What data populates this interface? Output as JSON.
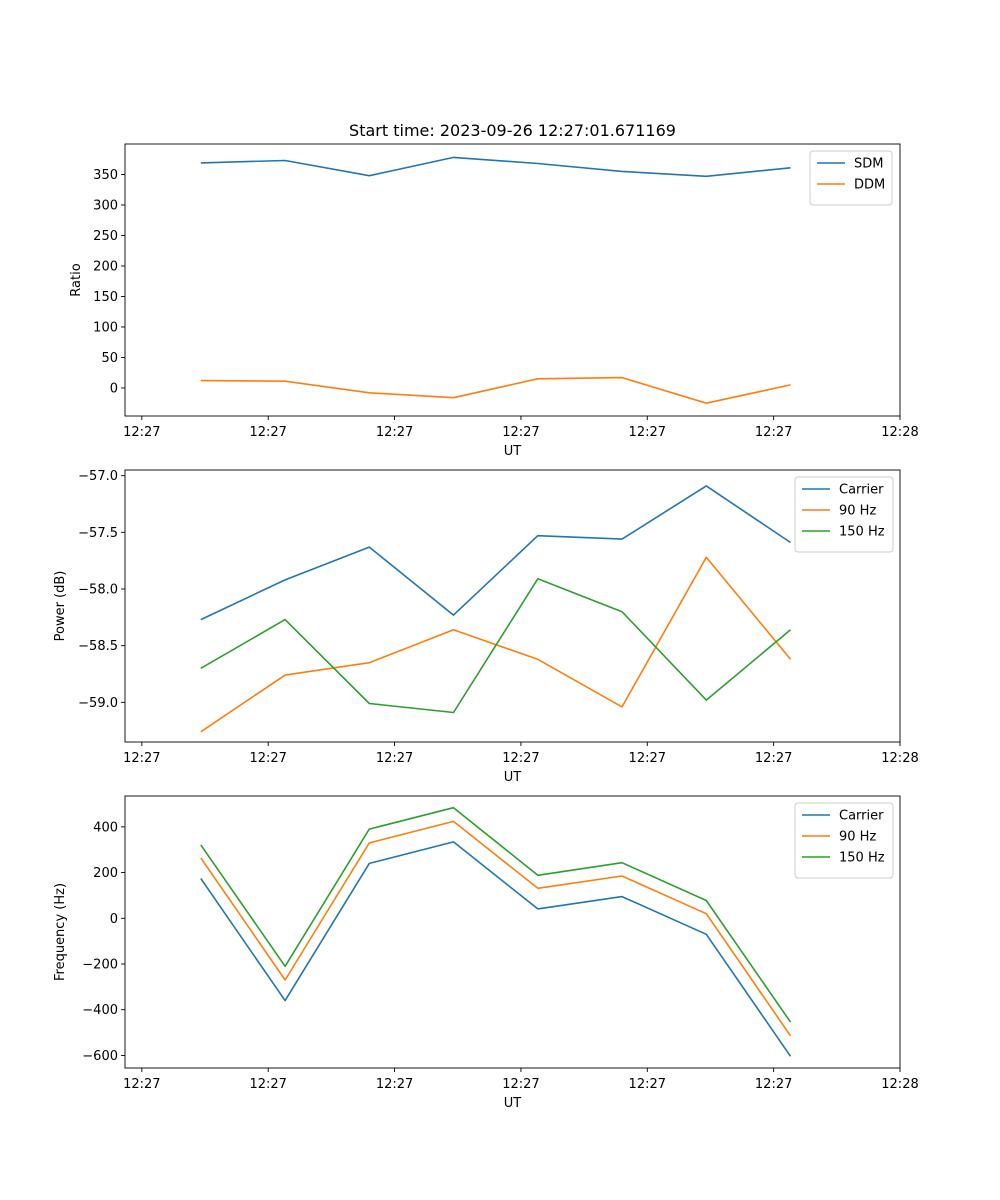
{
  "chart_data": [
    {
      "type": "line",
      "title": "Start time: 2023-09-26 12:27:01.671169",
      "xlabel": "UT",
      "ylabel": "Ratio",
      "xlim": [
        -0.9,
        8.3
      ],
      "ylim": [
        -46,
        400
      ],
      "xticks": [
        {
          "v": -0.7,
          "label": "12:27"
        },
        {
          "v": 0.8,
          "label": "12:27"
        },
        {
          "v": 2.3,
          "label": "12:27"
        },
        {
          "v": 3.8,
          "label": "12:27"
        },
        {
          "v": 5.3,
          "label": "12:27"
        },
        {
          "v": 6.8,
          "label": "12:27"
        },
        {
          "v": 8.3,
          "label": "12:28"
        }
      ],
      "yticks": [
        {
          "v": 0,
          "label": "0"
        },
        {
          "v": 50,
          "label": "50"
        },
        {
          "v": 100,
          "label": "100"
        },
        {
          "v": 150,
          "label": "150"
        },
        {
          "v": 200,
          "label": "200"
        },
        {
          "v": 250,
          "label": "250"
        },
        {
          "v": 300,
          "label": "300"
        },
        {
          "v": 350,
          "label": "350"
        }
      ],
      "legend": "top-right",
      "x": [
        0,
        1,
        2,
        3,
        4,
        5,
        6,
        7
      ],
      "series": [
        {
          "name": "SDM",
          "color": "#1f77b4",
          "values": [
            369,
            373,
            348,
            378,
            368,
            355,
            347,
            361
          ]
        },
        {
          "name": "DDM",
          "color": "#ff7f0e",
          "values": [
            12,
            11,
            -8,
            -16,
            15,
            17,
            -25,
            5
          ]
        }
      ]
    },
    {
      "type": "line",
      "title": "",
      "xlabel": "UT",
      "ylabel": "Power (dB)",
      "xlim": [
        -0.9,
        8.3
      ],
      "ylim": [
        -59.35,
        -56.95
      ],
      "xticks": [
        {
          "v": -0.7,
          "label": "12:27"
        },
        {
          "v": 0.8,
          "label": "12:27"
        },
        {
          "v": 2.3,
          "label": "12:27"
        },
        {
          "v": 3.8,
          "label": "12:27"
        },
        {
          "v": 5.3,
          "label": "12:27"
        },
        {
          "v": 6.8,
          "label": "12:27"
        },
        {
          "v": 8.3,
          "label": "12:28"
        }
      ],
      "yticks": [
        {
          "v": -59.0,
          "label": "−59.0"
        },
        {
          "v": -58.5,
          "label": "−58.5"
        },
        {
          "v": -58.0,
          "label": "−58.0"
        },
        {
          "v": -57.5,
          "label": "−57.5"
        },
        {
          "v": -57.0,
          "label": "−57.0"
        }
      ],
      "legend": "top-right",
      "x": [
        0,
        1,
        2,
        3,
        4,
        5,
        6,
        7
      ],
      "series": [
        {
          "name": "Carrier",
          "color": "#1f77b4",
          "values": [
            -58.27,
            -57.92,
            -57.63,
            -58.23,
            -57.53,
            -57.56,
            -57.09,
            -57.59
          ]
        },
        {
          "name": "90 Hz",
          "color": "#ff7f0e",
          "values": [
            -59.26,
            -58.76,
            -58.65,
            -58.36,
            -58.62,
            -59.04,
            -57.72,
            -58.62
          ]
        },
        {
          "name": "150 Hz",
          "color": "#2ca02c",
          "values": [
            -58.7,
            -58.27,
            -59.01,
            -59.09,
            -57.91,
            -58.2,
            -58.98,
            -58.36
          ]
        }
      ]
    },
    {
      "type": "line",
      "title": "",
      "xlabel": "UT",
      "ylabel": "Frequency (Hz)",
      "xlim": [
        -0.9,
        8.3
      ],
      "ylim": [
        -655,
        535
      ],
      "xticks": [
        {
          "v": -0.7,
          "label": "12:27"
        },
        {
          "v": 0.8,
          "label": "12:27"
        },
        {
          "v": 2.3,
          "label": "12:27"
        },
        {
          "v": 3.8,
          "label": "12:27"
        },
        {
          "v": 5.3,
          "label": "12:27"
        },
        {
          "v": 6.8,
          "label": "12:27"
        },
        {
          "v": 8.3,
          "label": "12:28"
        }
      ],
      "yticks": [
        {
          "v": -600,
          "label": "−600"
        },
        {
          "v": -400,
          "label": "−400"
        },
        {
          "v": -200,
          "label": "−200"
        },
        {
          "v": 0,
          "label": "0"
        },
        {
          "v": 200,
          "label": "200"
        },
        {
          "v": 400,
          "label": "400"
        }
      ],
      "legend": "top-right",
      "x": [
        0,
        1,
        2,
        3,
        4,
        5,
        6,
        7
      ],
      "series": [
        {
          "name": "Carrier",
          "color": "#1f77b4",
          "values": [
            174,
            -360,
            240,
            334,
            41,
            95,
            -70,
            -604
          ]
        },
        {
          "name": "90 Hz",
          "color": "#ff7f0e",
          "values": [
            264,
            -270,
            330,
            424,
            131,
            185,
            20,
            -514
          ]
        },
        {
          "name": "150 Hz",
          "color": "#2ca02c",
          "values": [
            321,
            -210,
            390,
            484,
            188,
            243,
            78,
            -454
          ]
        }
      ]
    }
  ]
}
